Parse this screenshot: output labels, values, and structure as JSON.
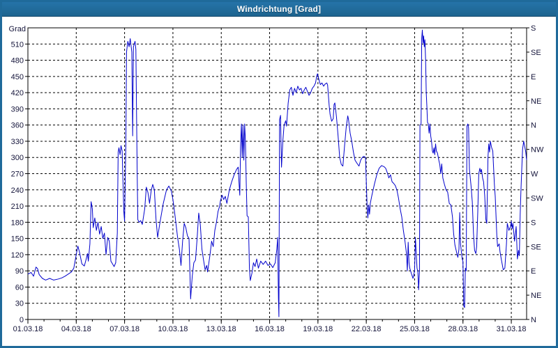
{
  "window": {
    "title": "Windrichtung [Grad]"
  },
  "frame": {
    "titlebar_color": "#1f6a9a",
    "border_color": "#1f6a9a",
    "background_color": "#ffffff",
    "axis_color": "#000000",
    "grid_color": "#000000",
    "text_color": "#14143a"
  },
  "chart_data": {
    "type": "line",
    "title": "Windrichtung [Grad]",
    "ylabel": "Grad",
    "line_color": "#0000cc",
    "ylim": [
      0,
      540
    ],
    "y_tick_step": 30,
    "y_tick_labels": [
      "0",
      "30",
      "60",
      "90",
      "120",
      "150",
      "180",
      "210",
      "240",
      "270",
      "300",
      "330",
      "360",
      "390",
      "420",
      "450",
      "480",
      "510"
    ],
    "right_axis_step_degrees": 45,
    "right_axis_labels_bottom_to_top": [
      "N",
      "NE",
      "E",
      "SE",
      "S",
      "SW",
      "W",
      "NW",
      "N",
      "NE",
      "E",
      "SE",
      "S"
    ],
    "xlim_days": [
      0,
      30.95
    ],
    "x_major_step_days": 3,
    "x_minor_step_days": 1,
    "x_tick_labels": [
      "01.03.18",
      "04.03.18",
      "07.03.18",
      "10.03.18",
      "13.03.18",
      "16.03.18",
      "19.03.18",
      "22.03.18",
      "25.03.18",
      "28.03.18",
      "31.03.18"
    ],
    "grid": true,
    "points": [
      [
        0.0,
        84
      ],
      [
        0.2,
        87
      ],
      [
        0.35,
        80
      ],
      [
        0.5,
        97
      ],
      [
        0.6,
        94
      ],
      [
        0.7,
        83
      ],
      [
        0.9,
        76
      ],
      [
        1.1,
        73
      ],
      [
        1.35,
        76
      ],
      [
        1.6,
        73
      ],
      [
        1.9,
        75
      ],
      [
        2.1,
        77
      ],
      [
        2.3,
        80
      ],
      [
        2.5,
        84
      ],
      [
        2.7,
        88
      ],
      [
        2.85,
        95
      ],
      [
        3.0,
        120
      ],
      [
        3.1,
        136
      ],
      [
        3.2,
        125
      ],
      [
        3.35,
        103
      ],
      [
        3.5,
        99
      ],
      [
        3.6,
        110
      ],
      [
        3.7,
        122
      ],
      [
        3.75,
        108
      ],
      [
        3.85,
        140
      ],
      [
        3.92,
        218
      ],
      [
        4.0,
        205
      ],
      [
        4.05,
        170
      ],
      [
        4.15,
        188
      ],
      [
        4.25,
        165
      ],
      [
        4.35,
        180
      ],
      [
        4.45,
        158
      ],
      [
        4.55,
        172
      ],
      [
        4.65,
        150
      ],
      [
        4.75,
        160
      ],
      [
        4.85,
        120
      ],
      [
        4.95,
        152
      ],
      [
        5.05,
        145
      ],
      [
        5.15,
        108
      ],
      [
        5.25,
        103
      ],
      [
        5.35,
        98
      ],
      [
        5.45,
        105
      ],
      [
        5.55,
        160
      ],
      [
        5.6,
        310
      ],
      [
        5.65,
        318
      ],
      [
        5.72,
        305
      ],
      [
        5.78,
        322
      ],
      [
        5.85,
        312
      ],
      [
        5.95,
        200
      ],
      [
        6.0,
        182
      ],
      [
        6.08,
        330
      ],
      [
        6.12,
        495
      ],
      [
        6.2,
        515
      ],
      [
        6.28,
        505
      ],
      [
        6.35,
        520
      ],
      [
        6.45,
        495
      ],
      [
        6.5,
        340
      ],
      [
        6.55,
        505
      ],
      [
        6.65,
        515
      ],
      [
        6.7,
        500
      ],
      [
        6.78,
        280
      ],
      [
        6.82,
        185
      ],
      [
        6.9,
        180
      ],
      [
        7.0,
        183
      ],
      [
        7.1,
        176
      ],
      [
        7.25,
        205
      ],
      [
        7.35,
        245
      ],
      [
        7.45,
        235
      ],
      [
        7.55,
        215
      ],
      [
        7.65,
        238
      ],
      [
        7.75,
        250
      ],
      [
        7.85,
        240
      ],
      [
        7.95,
        185
      ],
      [
        8.05,
        152
      ],
      [
        8.2,
        180
      ],
      [
        8.4,
        215
      ],
      [
        8.6,
        240
      ],
      [
        8.75,
        247
      ],
      [
        8.9,
        238
      ],
      [
        9.0,
        222
      ],
      [
        9.1,
        200
      ],
      [
        9.2,
        175
      ],
      [
        9.3,
        150
      ],
      [
        9.4,
        130
      ],
      [
        9.5,
        100
      ],
      [
        9.6,
        145
      ],
      [
        9.7,
        178
      ],
      [
        9.8,
        170
      ],
      [
        9.9,
        155
      ],
      [
        10.0,
        150
      ],
      [
        10.05,
        90
      ],
      [
        10.1,
        38
      ],
      [
        10.2,
        80
      ],
      [
        10.3,
        105
      ],
      [
        10.4,
        110
      ],
      [
        10.5,
        150
      ],
      [
        10.6,
        197
      ],
      [
        10.7,
        175
      ],
      [
        10.8,
        130
      ],
      [
        10.9,
        110
      ],
      [
        11.0,
        92
      ],
      [
        11.1,
        100
      ],
      [
        11.15,
        88
      ],
      [
        11.3,
        120
      ],
      [
        11.4,
        145
      ],
      [
        11.5,
        135
      ],
      [
        11.6,
        165
      ],
      [
        11.7,
        180
      ],
      [
        11.8,
        200
      ],
      [
        11.9,
        210
      ],
      [
        11.95,
        220
      ],
      [
        12.05,
        230
      ],
      [
        12.15,
        222
      ],
      [
        12.25,
        228
      ],
      [
        12.35,
        215
      ],
      [
        12.5,
        240
      ],
      [
        12.65,
        255
      ],
      [
        12.8,
        268
      ],
      [
        12.95,
        278
      ],
      [
        13.05,
        282
      ],
      [
        13.1,
        255
      ],
      [
        13.15,
        230
      ],
      [
        13.2,
        320
      ],
      [
        13.25,
        362
      ],
      [
        13.3,
        300
      ],
      [
        13.35,
        360
      ],
      [
        13.4,
        295
      ],
      [
        13.45,
        362
      ],
      [
        13.5,
        330
      ],
      [
        13.55,
        255
      ],
      [
        13.6,
        192
      ],
      [
        13.68,
        190
      ],
      [
        13.75,
        95
      ],
      [
        13.8,
        72
      ],
      [
        13.9,
        85
      ],
      [
        14.0,
        105
      ],
      [
        14.1,
        98
      ],
      [
        14.2,
        112
      ],
      [
        14.3,
        95
      ],
      [
        14.45,
        108
      ],
      [
        14.6,
        102
      ],
      [
        14.75,
        108
      ],
      [
        14.9,
        100
      ],
      [
        15.05,
        103
      ],
      [
        15.2,
        96
      ],
      [
        15.35,
        105
      ],
      [
        15.45,
        130
      ],
      [
        15.5,
        152
      ],
      [
        15.55,
        40
      ],
      [
        15.58,
        5
      ],
      [
        15.62,
        370
      ],
      [
        15.68,
        378
      ],
      [
        15.74,
        282
      ],
      [
        15.82,
        330
      ],
      [
        15.9,
        360
      ],
      [
        16.0,
        368
      ],
      [
        16.05,
        358
      ],
      [
        16.15,
        400
      ],
      [
        16.25,
        425
      ],
      [
        16.35,
        430
      ],
      [
        16.45,
        415
      ],
      [
        16.55,
        428
      ],
      [
        16.65,
        420
      ],
      [
        16.75,
        432
      ],
      [
        16.85,
        425
      ],
      [
        16.95,
        428
      ],
      [
        17.05,
        418
      ],
      [
        17.15,
        425
      ],
      [
        17.25,
        430
      ],
      [
        17.35,
        422
      ],
      [
        17.45,
        415
      ],
      [
        17.55,
        420
      ],
      [
        17.65,
        428
      ],
      [
        17.75,
        432
      ],
      [
        17.85,
        438
      ],
      [
        17.92,
        450
      ],
      [
        17.97,
        455
      ],
      [
        18.03,
        448
      ],
      [
        18.1,
        440
      ],
      [
        18.15,
        435
      ],
      [
        18.25,
        438
      ],
      [
        18.35,
        432
      ],
      [
        18.45,
        436
      ],
      [
        18.55,
        438
      ],
      [
        18.6,
        434
      ],
      [
        18.7,
        395
      ],
      [
        18.75,
        380
      ],
      [
        18.85,
        367
      ],
      [
        18.95,
        372
      ],
      [
        19.0,
        398
      ],
      [
        19.05,
        401
      ],
      [
        19.15,
        375
      ],
      [
        19.25,
        340
      ],
      [
        19.35,
        300
      ],
      [
        19.45,
        287
      ],
      [
        19.55,
        284
      ],
      [
        19.65,
        320
      ],
      [
        19.75,
        355
      ],
      [
        19.85,
        377
      ],
      [
        19.9,
        370
      ],
      [
        20.0,
        345
      ],
      [
        20.1,
        330
      ],
      [
        20.2,
        310
      ],
      [
        20.3,
        295
      ],
      [
        20.45,
        288
      ],
      [
        20.55,
        284
      ],
      [
        20.65,
        295
      ],
      [
        20.75,
        300
      ],
      [
        20.85,
        302
      ],
      [
        20.95,
        300
      ],
      [
        21.05,
        210
      ],
      [
        21.1,
        188
      ],
      [
        21.15,
        212
      ],
      [
        21.2,
        195
      ],
      [
        21.25,
        215
      ],
      [
        21.35,
        230
      ],
      [
        21.5,
        250
      ],
      [
        21.65,
        268
      ],
      [
        21.8,
        280
      ],
      [
        21.95,
        285
      ],
      [
        22.1,
        283
      ],
      [
        22.2,
        280
      ],
      [
        22.3,
        272
      ],
      [
        22.4,
        262
      ],
      [
        22.5,
        268
      ],
      [
        22.6,
        255
      ],
      [
        22.7,
        252
      ],
      [
        22.8,
        248
      ],
      [
        22.9,
        240
      ],
      [
        23.0,
        225
      ],
      [
        23.1,
        205
      ],
      [
        23.2,
        190
      ],
      [
        23.3,
        165
      ],
      [
        23.4,
        145
      ],
      [
        23.5,
        120
      ],
      [
        23.55,
        90
      ],
      [
        23.6,
        143
      ],
      [
        23.65,
        105
      ],
      [
        23.7,
        95
      ],
      [
        23.8,
        85
      ],
      [
        23.9,
        76
      ],
      [
        24.0,
        90
      ],
      [
        24.05,
        152
      ],
      [
        24.1,
        120
      ],
      [
        24.15,
        95
      ],
      [
        24.2,
        88
      ],
      [
        24.25,
        55
      ],
      [
        24.3,
        90
      ],
      [
        24.33,
        360
      ],
      [
        24.4,
        362
      ],
      [
        24.44,
        520
      ],
      [
        24.48,
        536
      ],
      [
        24.52,
        512
      ],
      [
        24.56,
        525
      ],
      [
        24.6,
        505
      ],
      [
        24.64,
        518
      ],
      [
        24.68,
        480
      ],
      [
        24.72,
        420
      ],
      [
        24.76,
        395
      ],
      [
        24.8,
        365
      ],
      [
        24.85,
        362
      ],
      [
        24.9,
        345
      ],
      [
        24.95,
        362
      ],
      [
        25.0,
        340
      ],
      [
        25.05,
        330
      ],
      [
        25.1,
        312
      ],
      [
        25.15,
        308
      ],
      [
        25.2,
        318
      ],
      [
        25.25,
        305
      ],
      [
        25.3,
        325
      ],
      [
        25.35,
        312
      ],
      [
        25.42,
        308
      ],
      [
        25.5,
        295
      ],
      [
        25.56,
        287
      ],
      [
        25.62,
        270
      ],
      [
        25.68,
        288
      ],
      [
        25.75,
        262
      ],
      [
        25.85,
        250
      ],
      [
        25.95,
        240
      ],
      [
        26.05,
        236
      ],
      [
        26.15,
        215
      ],
      [
        26.25,
        212
      ],
      [
        26.35,
        190
      ],
      [
        26.42,
        160
      ],
      [
        26.5,
        138
      ],
      [
        26.6,
        125
      ],
      [
        26.68,
        115
      ],
      [
        26.75,
        130
      ],
      [
        26.8,
        198
      ],
      [
        26.85,
        140
      ],
      [
        26.95,
        112
      ],
      [
        27.0,
        108
      ],
      [
        27.05,
        25
      ],
      [
        27.1,
        22
      ],
      [
        27.15,
        95
      ],
      [
        27.2,
        90
      ],
      [
        27.25,
        358
      ],
      [
        27.3,
        362
      ],
      [
        27.35,
        355
      ],
      [
        27.4,
        278
      ],
      [
        27.5,
        248
      ],
      [
        27.58,
        218
      ],
      [
        27.65,
        160
      ],
      [
        27.72,
        128
      ],
      [
        27.8,
        122
      ],
      [
        27.85,
        135
      ],
      [
        27.92,
        200
      ],
      [
        27.98,
        270
      ],
      [
        28.05,
        280
      ],
      [
        28.1,
        272
      ],
      [
        28.15,
        278
      ],
      [
        28.22,
        262
      ],
      [
        28.28,
        255
      ],
      [
        28.35,
        230
      ],
      [
        28.42,
        185
      ],
      [
        28.48,
        178
      ],
      [
        28.55,
        300
      ],
      [
        28.6,
        325
      ],
      [
        28.65,
        310
      ],
      [
        28.7,
        330
      ],
      [
        28.78,
        318
      ],
      [
        28.85,
        312
      ],
      [
        28.95,
        250
      ],
      [
        29.0,
        228
      ],
      [
        29.1,
        155
      ],
      [
        29.15,
        135
      ],
      [
        29.25,
        140
      ],
      [
        29.3,
        125
      ],
      [
        29.4,
        108
      ],
      [
        29.5,
        92
      ],
      [
        29.6,
        95
      ],
      [
        29.7,
        140
      ],
      [
        29.75,
        178
      ],
      [
        29.85,
        165
      ],
      [
        29.95,
        172
      ],
      [
        30.0,
        182
      ],
      [
        30.05,
        168
      ],
      [
        30.1,
        178
      ],
      [
        30.2,
        145
      ],
      [
        30.25,
        158
      ],
      [
        30.3,
        172
      ],
      [
        30.38,
        112
      ],
      [
        30.45,
        128
      ],
      [
        30.5,
        118
      ],
      [
        30.55,
        195
      ],
      [
        30.6,
        240
      ],
      [
        30.65,
        280
      ],
      [
        30.7,
        315
      ],
      [
        30.77,
        330
      ],
      [
        30.82,
        322
      ],
      [
        30.9,
        310
      ],
      [
        30.95,
        295
      ]
    ]
  }
}
